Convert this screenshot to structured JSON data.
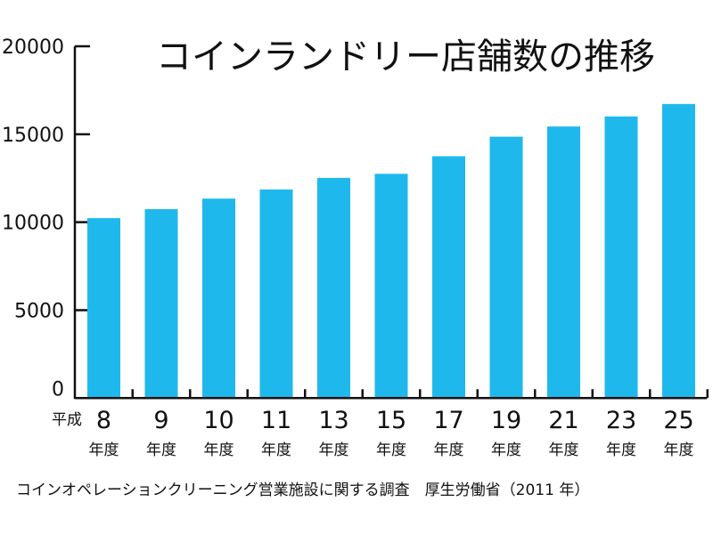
{
  "chart_data": {
    "type": "bar",
    "title": "コインランドリー店舗数の推移",
    "era_label": "平成",
    "category_suffix": "年度",
    "categories": [
      "8",
      "9",
      "10",
      "11",
      "13",
      "15",
      "17",
      "19",
      "21",
      "23",
      "25"
    ],
    "values": [
      10230,
      10740,
      11340,
      11860,
      12520,
      12750,
      13750,
      14860,
      15440,
      16010,
      16720
    ],
    "ylim": [
      0,
      20000
    ],
    "yticks": [
      "0",
      "5000",
      "10000",
      "15000",
      "20000"
    ],
    "xlabel": "",
    "ylabel": "",
    "grid": false,
    "legend": "none",
    "bar_color": "#1fb8ec",
    "source": "コインオペレーションクリーニング営業施設に関する調査　厚生労働省（2011 年）"
  }
}
